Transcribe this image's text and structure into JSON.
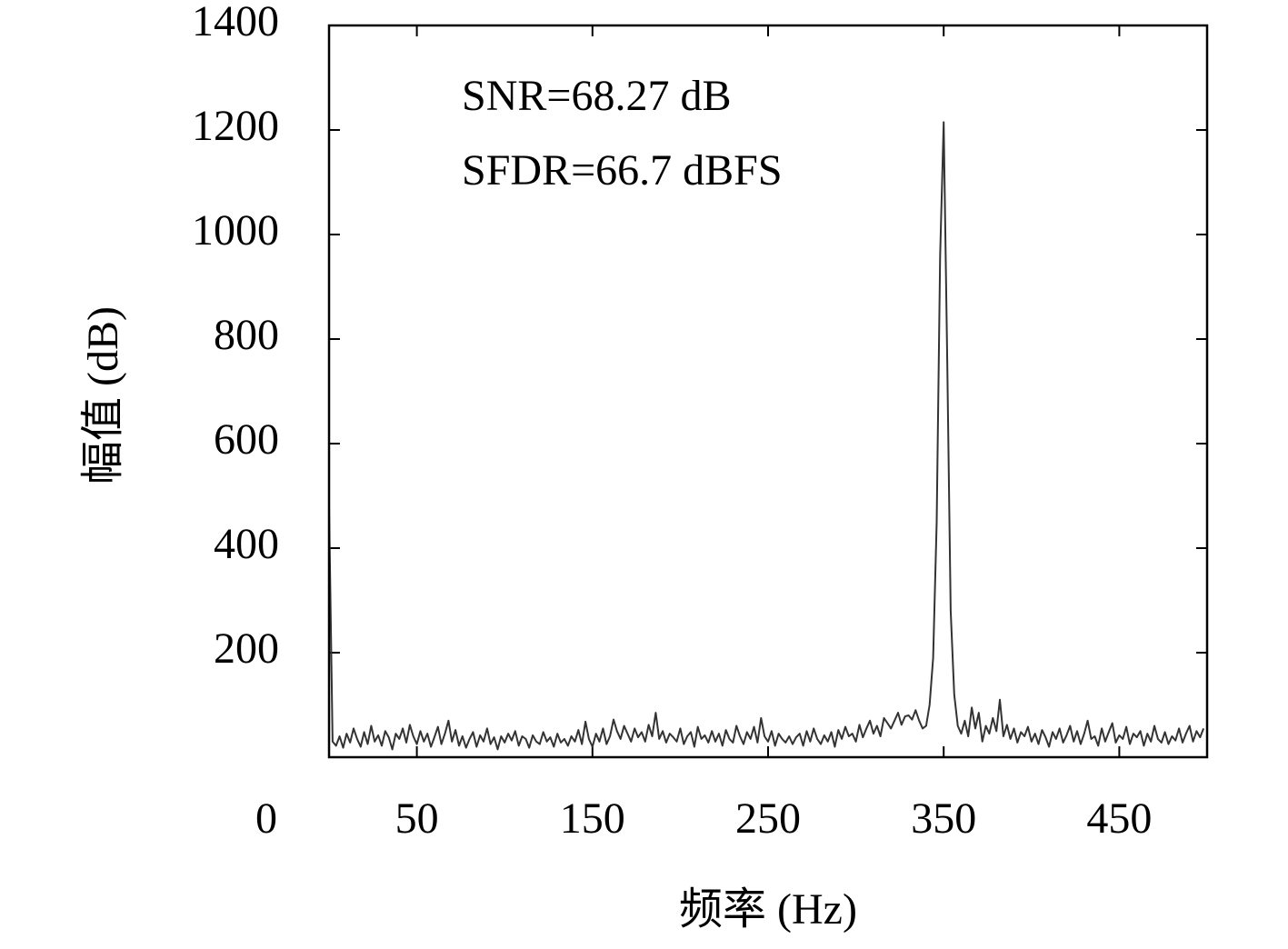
{
  "chart_data": {
    "type": "line",
    "xlabel": "频率 (Hz)",
    "ylabel": "幅值 (dB)",
    "annotations": [
      "SNR=68.27 dB",
      "SFDR=66.7 dBFS"
    ],
    "xlim": [
      0,
      500
    ],
    "xticks": [
      50,
      150,
      250,
      350,
      450
    ],
    "ylim": [
      0,
      1400
    ],
    "yticks": [
      0,
      200,
      400,
      600,
      800,
      1000,
      1200,
      1400
    ],
    "grid": false,
    "x": [
      0,
      2,
      4,
      6,
      8,
      10,
      12,
      14,
      16,
      18,
      20,
      22,
      24,
      26,
      28,
      30,
      32,
      34,
      36,
      38,
      40,
      42,
      44,
      46,
      48,
      50,
      52,
      54,
      56,
      58,
      60,
      62,
      64,
      66,
      68,
      70,
      72,
      74,
      76,
      78,
      80,
      82,
      84,
      86,
      88,
      90,
      92,
      94,
      96,
      98,
      100,
      102,
      104,
      106,
      108,
      110,
      112,
      114,
      116,
      118,
      120,
      122,
      124,
      126,
      128,
      130,
      132,
      134,
      136,
      138,
      140,
      142,
      144,
      146,
      148,
      150,
      152,
      154,
      156,
      158,
      160,
      162,
      164,
      166,
      168,
      170,
      172,
      174,
      176,
      178,
      180,
      182,
      184,
      186,
      188,
      190,
      192,
      194,
      196,
      198,
      200,
      202,
      204,
      206,
      208,
      210,
      212,
      214,
      216,
      218,
      220,
      222,
      224,
      226,
      228,
      230,
      232,
      234,
      236,
      238,
      240,
      242,
      244,
      246,
      248,
      250,
      252,
      254,
      256,
      258,
      260,
      262,
      264,
      266,
      268,
      270,
      272,
      274,
      276,
      278,
      280,
      282,
      284,
      286,
      288,
      290,
      292,
      294,
      296,
      298,
      300,
      302,
      304,
      306,
      308,
      310,
      312,
      314,
      316,
      318,
      320,
      322,
      324,
      326,
      328,
      330,
      332,
      334,
      336,
      338,
      340,
      342,
      344,
      346,
      348,
      350,
      352,
      354,
      356,
      358,
      360,
      362,
      364,
      366,
      368,
      370,
      372,
      374,
      376,
      378,
      380,
      382,
      384,
      386,
      388,
      390,
      392,
      394,
      396,
      398,
      400,
      402,
      404,
      406,
      408,
      410,
      412,
      414,
      416,
      418,
      420,
      422,
      424,
      426,
      428,
      430,
      432,
      434,
      436,
      438,
      440,
      442,
      444,
      446,
      448,
      450,
      452,
      454,
      456,
      458,
      460,
      462,
      464,
      466,
      468,
      470,
      472,
      474,
      476,
      478,
      480,
      482,
      484,
      486,
      488,
      490,
      492,
      494,
      496,
      498
    ],
    "series": [
      {
        "color": "#333333",
        "values": [
          480,
          30,
          22,
          40,
          18,
          45,
          28,
          55,
          35,
          20,
          48,
          25,
          60,
          30,
          42,
          22,
          50,
          38,
          15,
          45,
          35,
          55,
          28,
          62,
          40,
          25,
          50,
          30,
          45,
          20,
          38,
          58,
          25,
          45,
          70,
          30,
          52,
          22,
          40,
          18,
          35,
          48,
          20,
          42,
          30,
          55,
          25,
          38,
          15,
          40,
          28,
          45,
          32,
          50,
          22,
          40,
          35,
          18,
          42,
          30,
          25,
          48,
          30,
          38,
          20,
          45,
          28,
          35,
          22,
          40,
          30,
          52,
          25,
          68,
          35,
          20,
          45,
          30,
          55,
          25,
          40,
          72,
          50,
          35,
          60,
          45,
          30,
          55,
          38,
          48,
          30,
          62,
          40,
          85,
          35,
          50,
          28,
          45,
          38,
          30,
          55,
          25,
          40,
          48,
          20,
          58,
          35,
          42,
          28,
          50,
          30,
          45,
          22,
          52,
          35,
          28,
          60,
          40,
          25,
          48,
          35,
          58,
          28,
          75,
          40,
          30,
          50,
          22,
          45,
          35,
          28,
          40,
          25,
          38,
          45,
          22,
          50,
          30,
          55,
          35,
          25,
          42,
          30,
          48,
          20,
          52,
          35,
          58,
          40,
          45,
          30,
          62,
          38,
          55,
          70,
          45,
          60,
          40,
          75,
          65,
          55,
          70,
          85,
          62,
          78,
          80,
          72,
          90,
          70,
          55,
          60,
          100,
          190,
          450,
          960,
          1215,
          760,
          280,
          120,
          60,
          45,
          70,
          40,
          95,
          55,
          85,
          30,
          60,
          45,
          75,
          50,
          110,
          40,
          62,
          35,
          55,
          28,
          48,
          40,
          58,
          30,
          45,
          25,
          52,
          38,
          20,
          48,
          35,
          55,
          28,
          42,
          60,
          30,
          50,
          25,
          45,
          70,
          35,
          40,
          22,
          55,
          30,
          48,
          65,
          28,
          42,
          35,
          58,
          25,
          45,
          38,
          50,
          22,
          45,
          30,
          60,
          35,
          28,
          48,
          25,
          40,
          32,
          55,
          28,
          45,
          60,
          30,
          50,
          38,
          55
        ]
      }
    ]
  }
}
